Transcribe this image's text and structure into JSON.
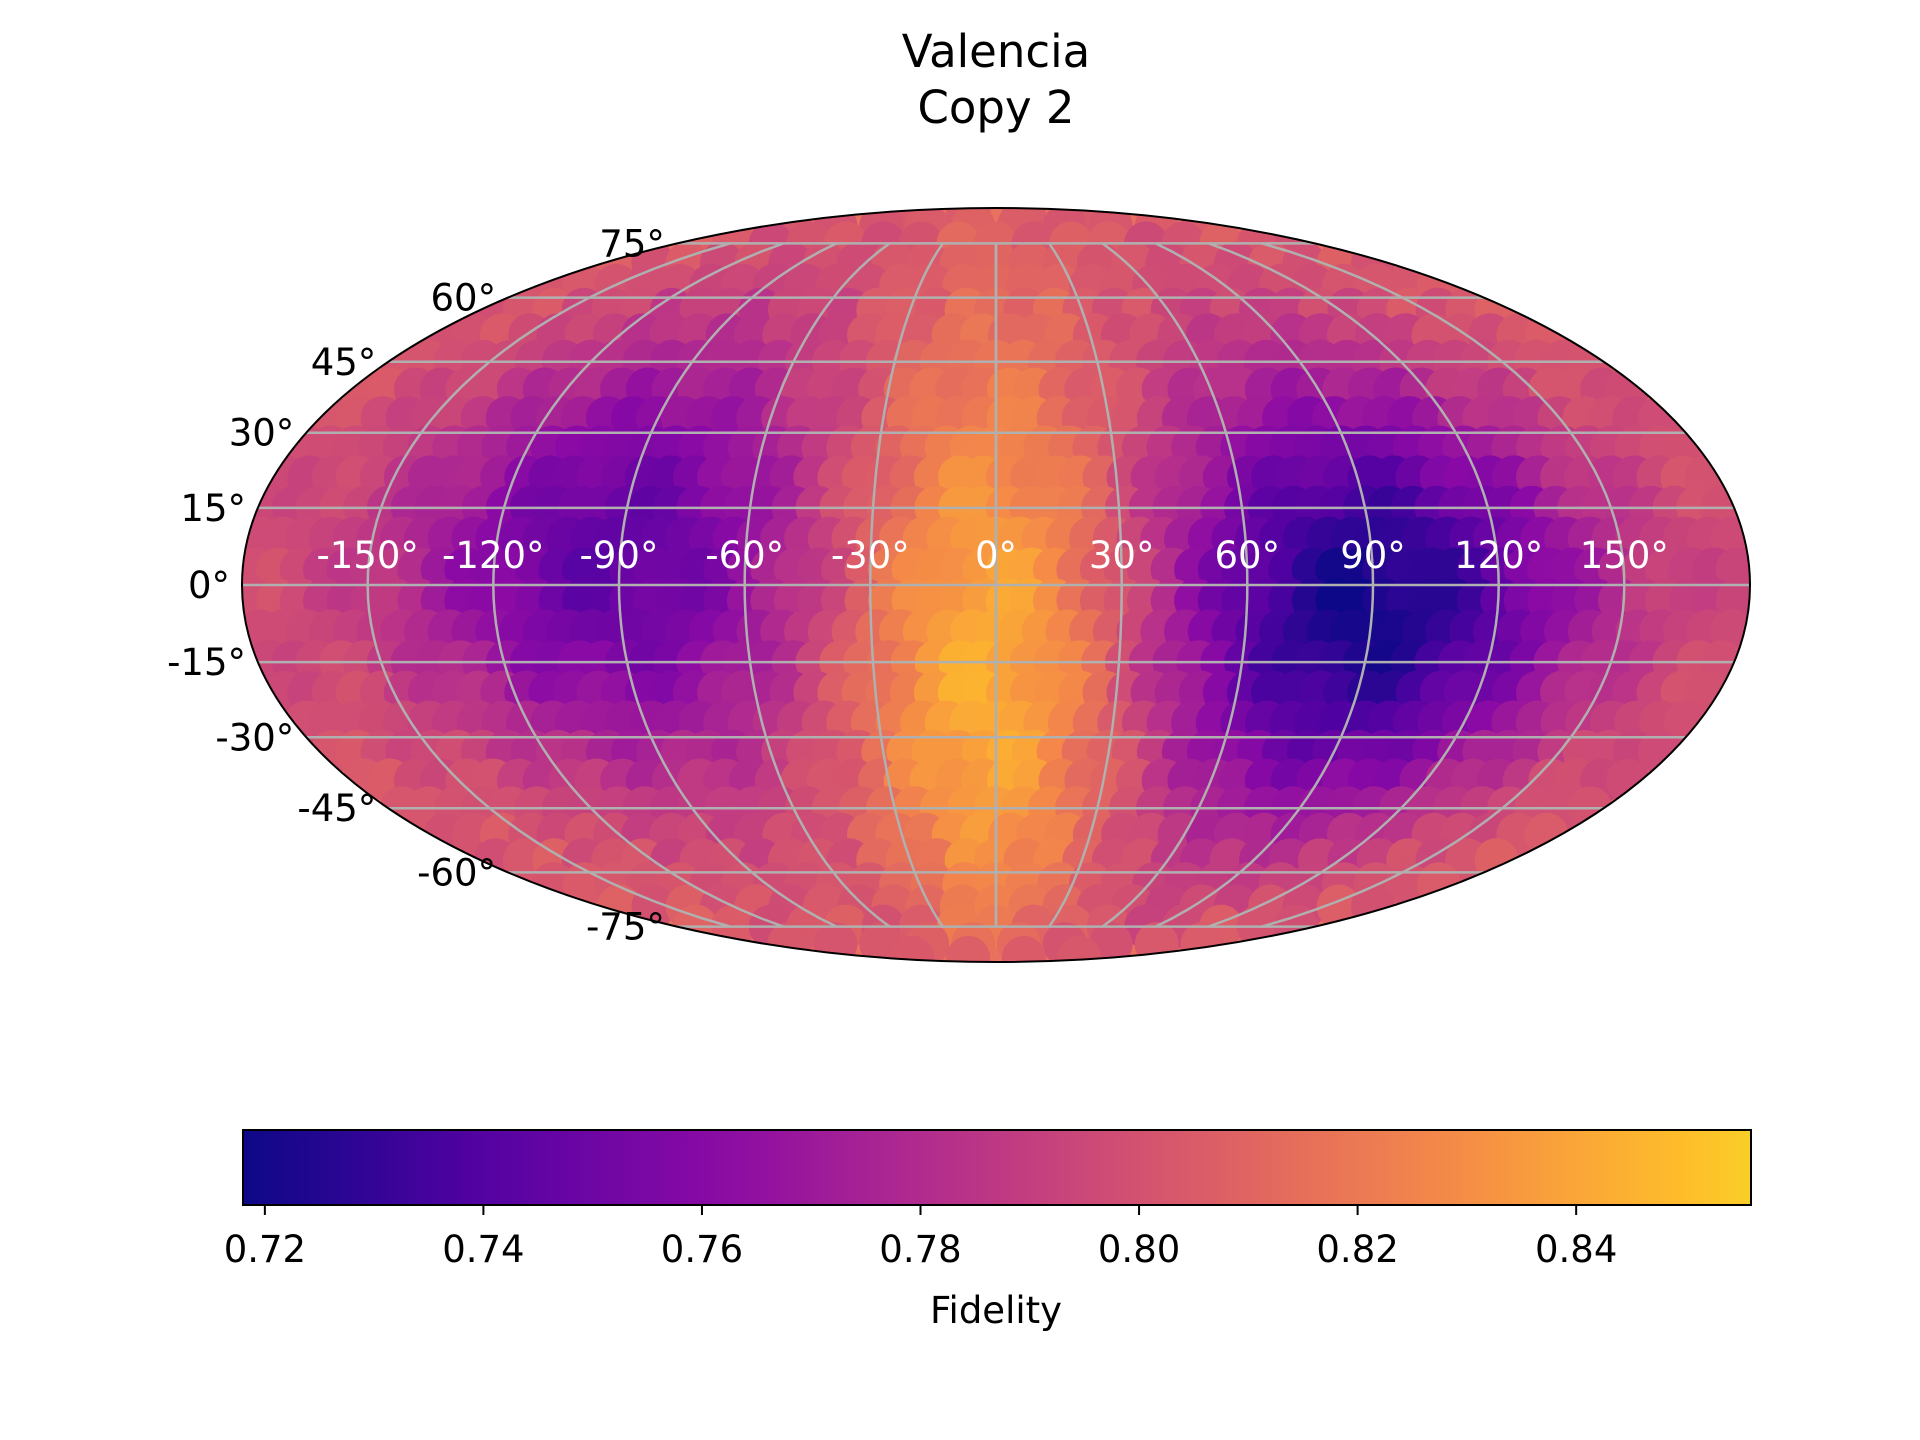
{
  "chart_data": {
    "type": "heatmap",
    "projection": "mollweide",
    "title": [
      "Valencia",
      "Copy 2"
    ],
    "colormap": "plasma",
    "value_range": [
      0.718,
      0.856
    ],
    "longitude_ticks": [
      "-150°",
      "-120°",
      "-90°",
      "-60°",
      "-30°",
      "0°",
      "30°",
      "60°",
      "90°",
      "120°",
      "150°"
    ],
    "longitude_tick_values": [
      -150,
      -120,
      -90,
      -60,
      -30,
      0,
      30,
      60,
      90,
      120,
      150
    ],
    "latitude_ticks": [
      "75°",
      "60°",
      "45°",
      "30°",
      "15°",
      "0°",
      "-15°",
      "-30°",
      "-45°",
      "-60°",
      "-75°"
    ],
    "latitude_tick_values": [
      75,
      60,
      45,
      30,
      15,
      0,
      -15,
      -30,
      -45,
      -60,
      -75
    ],
    "grid": true,
    "colorbar": {
      "label": "Fidelity",
      "orientation": "horizontal",
      "placement": "bottom",
      "ticks": [
        "0.72",
        "0.74",
        "0.76",
        "0.78",
        "0.80",
        "0.82",
        "0.84"
      ],
      "tick_values": [
        0.72,
        0.74,
        0.76,
        0.78,
        0.8,
        0.82,
        0.84
      ]
    },
    "field_features": [
      {
        "feature": "maximum",
        "lon": 0,
        "lat": -15,
        "value": 0.85
      },
      {
        "feature": "minimum",
        "lon": 90,
        "lat": -5,
        "value": 0.72
      },
      {
        "feature": "minimum",
        "lon": -90,
        "lat": 5,
        "value": 0.745
      }
    ]
  }
}
